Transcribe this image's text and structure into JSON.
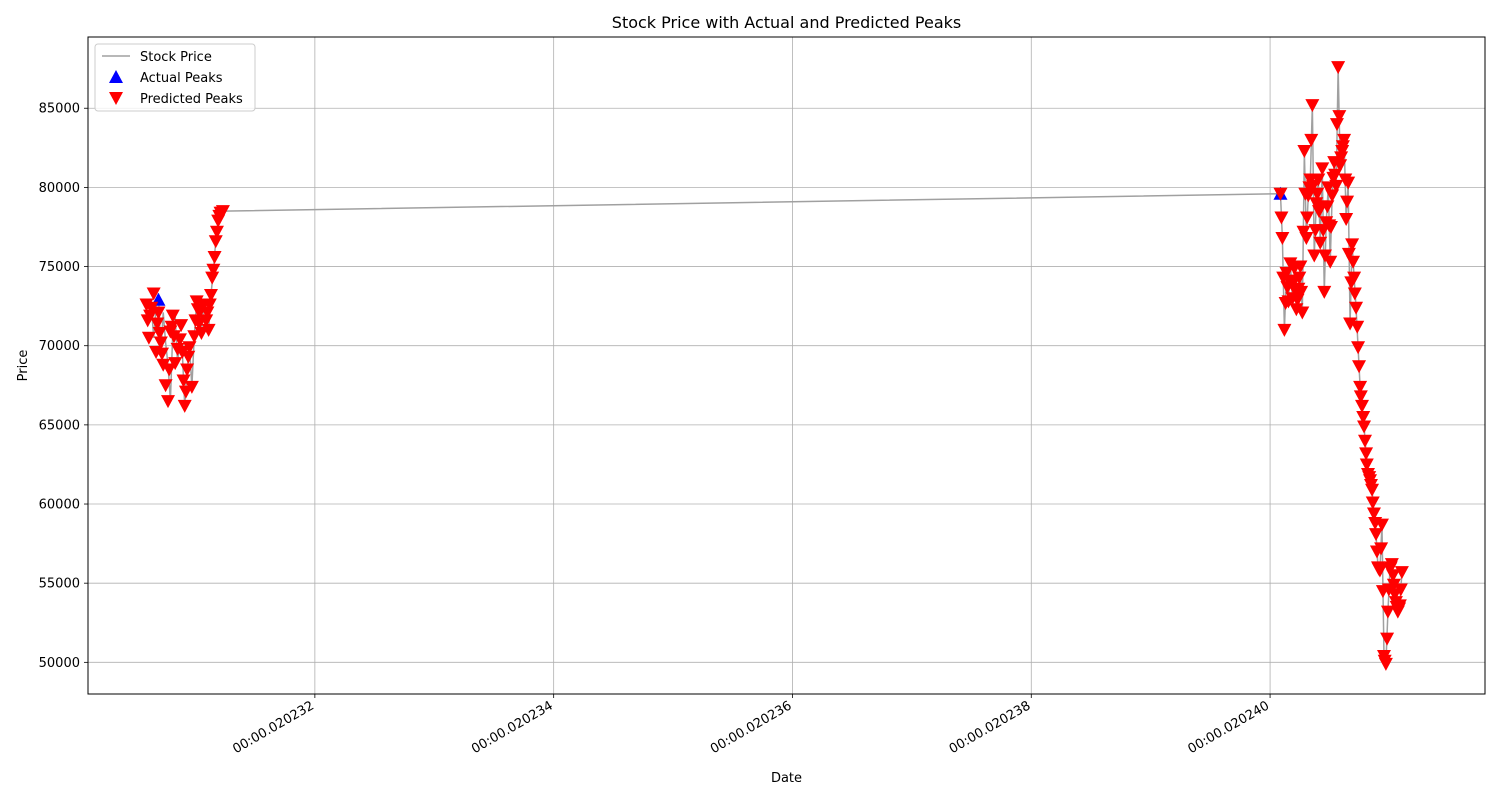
{
  "chart_data": {
    "type": "line",
    "title": "Stock Price with Actual and Predicted Peaks",
    "xlabel": "Date",
    "ylabel": "Price",
    "x_unit": "seconds",
    "xlim": [
      0.0202301,
      0.0202418
    ],
    "ylim": [
      48000,
      89500
    ],
    "grid": true,
    "legend_position": "top-left",
    "x_ticks": [
      {
        "value": 0.020232,
        "label": "00:00.020232"
      },
      {
        "value": 0.020234,
        "label": "00:00.020234"
      },
      {
        "value": 0.020236,
        "label": "00:00.020236"
      },
      {
        "value": 0.020238,
        "label": "00:00.020238"
      },
      {
        "value": 0.02024,
        "label": "00:00.020240"
      }
    ],
    "y_ticks": [
      {
        "value": 50000,
        "label": "50000"
      },
      {
        "value": 55000,
        "label": "55000"
      },
      {
        "value": 60000,
        "label": "60000"
      },
      {
        "value": 65000,
        "label": "65000"
      },
      {
        "value": 70000,
        "label": "70000"
      },
      {
        "value": 75000,
        "label": "75000"
      },
      {
        "value": 80000,
        "label": "80000"
      },
      {
        "value": 85000,
        "label": "85000"
      }
    ],
    "series": [
      {
        "name": "Stock Price",
        "kind": "line",
        "color": "#a0a0a0",
        "x": [
          0.02023063,
          0.02023065,
          0.02023067,
          0.02023069,
          0.02023071,
          0.02023073,
          0.02023075,
          0.02023077,
          0.02023079,
          0.02023081,
          0.02023083,
          0.02023085,
          0.02023087,
          0.02023089,
          0.02023091,
          0.02023093,
          0.02023095,
          0.02023097,
          0.02023099,
          0.02023101,
          0.02023103,
          0.02023105,
          0.02023107,
          0.02023109,
          0.02023111,
          0.02023113,
          0.02023115,
          0.02023117,
          0.02023119,
          0.02023121,
          0.02023123,
          0.020240087,
          0.020240103,
          0.02024012,
          0.020240137,
          0.020240154,
          0.02024017,
          0.020240187,
          0.020240204,
          0.02024022,
          0.020240237,
          0.020240254,
          0.02024027,
          0.020240287,
          0.020240304,
          0.02024032,
          0.020240337,
          0.020240354,
          0.02024037,
          0.020240387,
          0.020240404,
          0.02024042,
          0.020240437,
          0.020240454,
          0.02024047,
          0.020240487,
          0.020240504,
          0.02024052,
          0.020240537,
          0.020240554,
          0.02024057,
          0.020240587,
          0.020240604,
          0.02024062,
          0.020240637,
          0.020240654,
          0.02024067,
          0.020240687,
          0.020240704,
          0.02024072,
          0.020240737,
          0.020240754,
          0.02024077,
          0.020240787,
          0.020240804,
          0.02024082,
          0.020240837,
          0.020240854,
          0.02024087,
          0.020240887,
          0.020240904,
          0.02024092,
          0.020240937,
          0.020240954,
          0.02024097,
          0.020240987,
          0.020241004,
          0.02024102,
          0.020241037,
          0.020241054,
          0.02024107,
          0.020241087,
          0.020241104
        ],
        "y": [
          72600,
          70500,
          72400,
          73300,
          69600,
          72100,
          70200,
          68800,
          66500,
          70900,
          71900,
          68900,
          70400,
          69600,
          66200,
          68500,
          69900,
          67400,
          70600,
          72800,
          71400,
          70800,
          72600,
          71600,
          71000,
          73200,
          74800,
          76600,
          77900,
          78400,
          78500,
          79600,
          76800,
          71000,
          74600,
          72800,
          75200,
          73000,
          74900,
          72300,
          73600,
          75000,
          72100,
          82300,
          76800,
          79500,
          80500,
          85200,
          75700,
          79000,
          80500,
          76500,
          81200,
          73400,
          77800,
          80000,
          75300,
          79500,
          81600,
          80100,
          87600,
          81400,
          82300,
          83000,
          78000,
          80300,
          71400,
          76400,
          74300,
          72400,
          69900,
          67400,
          66200,
          64900,
          63200,
          61900,
          61500,
          60900,
          59400,
          58100,
          56000,
          55800,
          58700,
          50400,
          49900,
          53200,
          55900,
          56200,
          54900,
          53800,
          53200,
          53600,
          55700
        ]
      },
      {
        "name": "Actual Peaks",
        "kind": "scatter",
        "marker": "triangle-up",
        "color": "#0000ff",
        "x": [
          0.02023069,
          0.020240087
        ],
        "y": [
          72900,
          79600
        ]
      },
      {
        "name": "Predicted Peaks",
        "kind": "scatter",
        "marker": "triangle-down",
        "color": "#ff0000",
        "x": [
          0.02023059,
          0.0202306,
          0.02023061,
          0.02023062,
          0.02023063,
          0.02023065,
          0.02023067,
          0.02023068,
          0.02023069,
          0.0202307,
          0.02023071,
          0.02023072,
          0.02023073,
          0.02023075,
          0.02023077,
          0.02023078,
          0.02023079,
          0.0202308,
          0.02023081,
          0.02023082,
          0.02023083,
          0.02023085,
          0.02023087,
          0.02023088,
          0.02023089,
          0.0202309,
          0.02023091,
          0.02023092,
          0.02023093,
          0.02023094,
          0.02023095,
          0.02023097,
          0.02023099,
          0.020231,
          0.02023101,
          0.02023102,
          0.02023103,
          0.02023104,
          0.02023105,
          0.02023107,
          0.02023109,
          0.0202311,
          0.02023111,
          0.02023112,
          0.02023113,
          0.02023114,
          0.02023115,
          0.02023116,
          0.02023117,
          0.02023118,
          0.02023119,
          0.0202312,
          0.02023121,
          0.02023122,
          0.02023123,
          0.020240087,
          0.020240095,
          0.020240103,
          0.02024011,
          0.02024012,
          0.02024013,
          0.020240137,
          0.020240145,
          0.020240154,
          0.02024016,
          0.02024017,
          0.02024018,
          0.020240187,
          0.020240195,
          0.020240204,
          0.02024021,
          0.02024022,
          0.02024023,
          0.020240237,
          0.020240245,
          0.020240254,
          0.02024026,
          0.02024027,
          0.02024028,
          0.020240287,
          0.020240295,
          0.020240304,
          0.02024031,
          0.02024032,
          0.02024033,
          0.020240337,
          0.020240345,
          0.020240354,
          0.02024036,
          0.02024037,
          0.02024038,
          0.020240387,
          0.020240395,
          0.020240404,
          0.02024041,
          0.02024042,
          0.02024043,
          0.020240437,
          0.020240445,
          0.020240454,
          0.02024046,
          0.02024047,
          0.02024048,
          0.020240487,
          0.020240495,
          0.020240504,
          0.02024051,
          0.02024052,
          0.02024053,
          0.020240537,
          0.020240545,
          0.020240554,
          0.02024056,
          0.02024057,
          0.02024058,
          0.020240587,
          0.020240595,
          0.020240604,
          0.02024061,
          0.02024062,
          0.02024063,
          0.020240637,
          0.020240645,
          0.020240654,
          0.02024066,
          0.02024067,
          0.02024068,
          0.020240687,
          0.020240695,
          0.020240704,
          0.02024071,
          0.02024072,
          0.02024073,
          0.020240737,
          0.020240745,
          0.020240754,
          0.02024076,
          0.02024077,
          0.02024078,
          0.020240787,
          0.020240795,
          0.020240804,
          0.02024081,
          0.02024082,
          0.02024083,
          0.020240837,
          0.020240845,
          0.020240854,
          0.02024086,
          0.02024087,
          0.02024088,
          0.020240887,
          0.020240895,
          0.020240904,
          0.02024091,
          0.02024092,
          0.02024093,
          0.020240937,
          0.020240945,
          0.020240954,
          0.02024096,
          0.02024097,
          0.02024098,
          0.020240987,
          0.020240995,
          0.020241004,
          0.02024101,
          0.02024102,
          0.02024103,
          0.020241037,
          0.020241045,
          0.020241054,
          0.02024106,
          0.02024107,
          0.02024108,
          0.020241087,
          0.020241095,
          0.020241104
        ],
        "y": [
          72600,
          71600,
          70500,
          71900,
          72400,
          73300,
          69600,
          71400,
          72100,
          70800,
          70200,
          69500,
          68800,
          67500,
          66500,
          68500,
          70900,
          71200,
          71900,
          70600,
          68900,
          69800,
          70400,
          71300,
          69600,
          67800,
          66200,
          67100,
          68500,
          69300,
          69900,
          67400,
          70600,
          71600,
          72800,
          72300,
          71400,
          72200,
          70800,
          72600,
          71600,
          72100,
          71000,
          72600,
          73200,
          74300,
          74800,
          75600,
          76600,
          77200,
          77900,
          78200,
          78400,
          78400,
          78500,
          79600,
          78100,
          76800,
          74300,
          71000,
          72700,
          74600,
          73700,
          72800,
          74100,
          75200,
          74100,
          73000,
          74000,
          74900,
          73500,
          72300,
          72900,
          73600,
          74300,
          75000,
          73400,
          72100,
          77200,
          82300,
          79600,
          76800,
          78100,
          79500,
          80000,
          80500,
          83000,
          85200,
          80100,
          75700,
          77300,
          79000,
          79600,
          80500,
          78500,
          76500,
          78800,
          81200,
          77300,
          73400,
          75700,
          77800,
          78800,
          80000,
          77600,
          75300,
          77500,
          79500,
          80600,
          81600,
          80800,
          80100,
          84000,
          87600,
          84500,
          81400,
          81900,
          82300,
          82600,
          83000,
          80500,
          78000,
          79100,
          80300,
          75800,
          71400,
          74000,
          76400,
          75300,
          74300,
          73300,
          72400,
          71200,
          69900,
          68700,
          67400,
          66800,
          66200,
          65500,
          64900,
          64000,
          63200,
          62500,
          61900,
          61700,
          61500,
          61200,
          60900,
          60100,
          59400,
          58800,
          58100,
          57000,
          56000,
          55900,
          55800,
          57200,
          58700,
          54500,
          50400,
          50100,
          49900,
          51500,
          53200,
          54600,
          55900,
          56000,
          56200,
          55500,
          54900,
          54300,
          53800,
          53500,
          53200,
          53400,
          53600,
          54600,
          55700
        ]
      }
    ]
  }
}
